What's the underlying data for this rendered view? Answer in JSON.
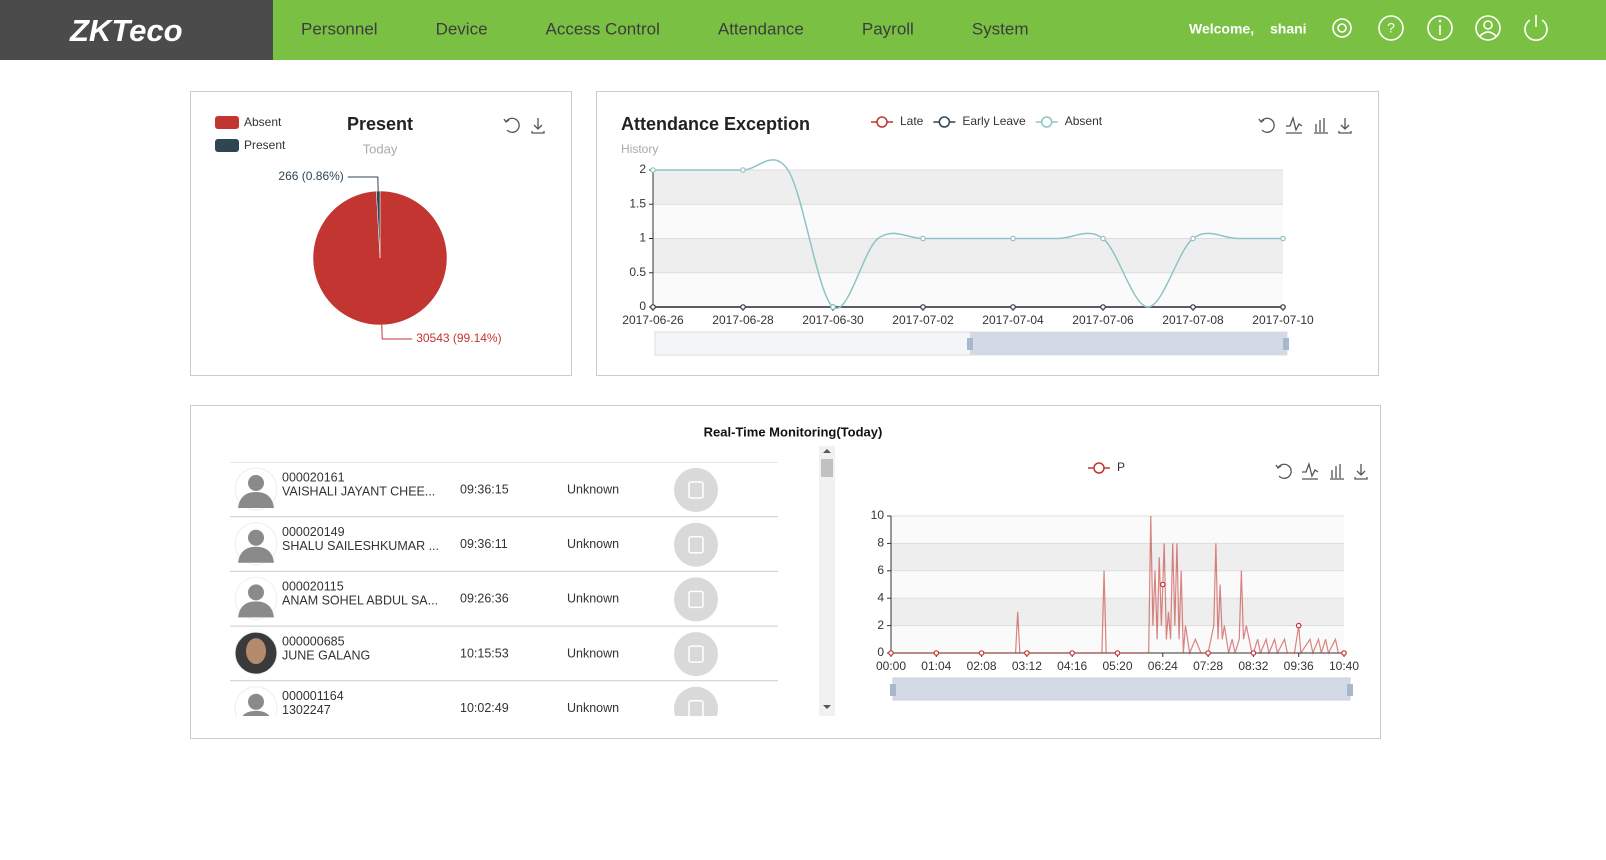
{
  "header": {
    "logo": "ZKTeco",
    "nav": [
      "Personnel",
      "Device",
      "Access Control",
      "Attendance",
      "Payroll",
      "System"
    ],
    "welcome": "Welcome,",
    "user": "shani"
  },
  "chart_data": [
    {
      "type": "pie",
      "title": "Present",
      "subtitle": "Today",
      "categories": [
        "Absent",
        "Present"
      ],
      "values": [
        30543,
        266
      ],
      "value_labels": [
        "30543 (99.14%)",
        "266 (0.86%)"
      ],
      "colors": [
        "#c23531",
        "#2f4554"
      ]
    },
    {
      "type": "line",
      "title": "Attendance Exception",
      "subtitle": "History",
      "categories": [
        "2017-06-26",
        null,
        "2017-06-28",
        null,
        "2017-06-30",
        null,
        "2017-07-02",
        null,
        "2017-07-04",
        null,
        "2017-07-06",
        null,
        "2017-07-08",
        null,
        "2017-07-10"
      ],
      "series": [
        {
          "name": "Late",
          "color": "#c23531",
          "values": [
            0,
            0,
            0,
            0,
            0,
            0,
            0,
            0,
            0,
            0,
            0,
            0,
            0,
            0,
            0
          ]
        },
        {
          "name": "Early Leave",
          "color": "#2f4554",
          "values": [
            0,
            0,
            0,
            0,
            0,
            0,
            0,
            0,
            0,
            0,
            0,
            0,
            0,
            0,
            0
          ]
        },
        {
          "name": "Absent",
          "color": "#8fc3c6",
          "values": [
            2,
            2,
            2,
            2,
            0,
            1,
            1,
            1,
            1,
            1,
            1,
            0,
            1,
            1,
            1
          ]
        }
      ],
      "ylim": [
        0,
        2
      ],
      "yticks": [
        0,
        0.5,
        1,
        1.5,
        2
      ],
      "grid": true,
      "smooth": true
    },
    {
      "type": "line",
      "x": [
        0,
        64,
        128,
        176,
        179,
        182,
        192,
        256,
        298,
        301,
        304,
        320,
        364,
        367,
        370,
        373,
        376,
        379,
        382,
        384,
        386,
        389,
        392,
        395,
        398,
        401,
        404,
        407,
        410,
        413,
        416,
        419,
        422,
        430,
        438,
        448,
        452,
        456,
        459,
        462,
        465,
        468,
        471,
        474,
        477,
        482,
        486,
        492,
        495,
        498,
        502,
        506,
        510,
        512,
        518,
        522,
        530,
        534,
        542,
        546,
        556,
        560,
        570,
        573,
        576,
        579,
        592,
        596,
        604,
        608,
        614,
        618,
        628,
        632,
        640
      ],
      "series": [
        {
          "name": "P",
          "color": "#c23531",
          "values": [
            0,
            0,
            0,
            0,
            3,
            0,
            0,
            0,
            0,
            6,
            0,
            0,
            0,
            10,
            2,
            6,
            1,
            7,
            2,
            5,
            8,
            1,
            3,
            1,
            8,
            2,
            8,
            1,
            6,
            0,
            2,
            1,
            0,
            1,
            0,
            0,
            1,
            2,
            8,
            1,
            5,
            1,
            2,
            1,
            0,
            1,
            0,
            1,
            6,
            1,
            2,
            1,
            0,
            0,
            1,
            0,
            1,
            0,
            1,
            0,
            1,
            0,
            0,
            1,
            2,
            0,
            1,
            0,
            1,
            0,
            1,
            0,
            1,
            0,
            0
          ]
        }
      ],
      "xlim": [
        0,
        640
      ],
      "xticks": [
        {
          "value": 0,
          "label": "00:00"
        },
        {
          "value": 64,
          "label": "01:04"
        },
        {
          "value": 128,
          "label": "02:08"
        },
        {
          "value": 192,
          "label": "03:12"
        },
        {
          "value": 256,
          "label": "04:16"
        },
        {
          "value": 320,
          "label": "05:20"
        },
        {
          "value": 384,
          "label": "06:24"
        },
        {
          "value": 448,
          "label": "07:28"
        },
        {
          "value": 512,
          "label": "08:32"
        },
        {
          "value": 576,
          "label": "09:36"
        },
        {
          "value": 640,
          "label": "10:40"
        }
      ],
      "ylim": [
        0,
        10
      ],
      "yticks": [
        0,
        2,
        4,
        6,
        8,
        10
      ],
      "grid": true,
      "smooth": false
    }
  ],
  "monitoring": {
    "title": "Real-Time Monitoring(Today)",
    "rows": [
      {
        "id": "000020161",
        "name": "VAISHALI JAYANT CHEE...",
        "time": "09:36:15",
        "status": "Unknown"
      },
      {
        "id": "000020149",
        "name": "SHALU SAILESHKUMAR ...",
        "time": "09:36:11",
        "status": "Unknown"
      },
      {
        "id": "000020115",
        "name": "ANAM SOHEL ABDUL SA...",
        "time": "09:26:36",
        "status": "Unknown"
      },
      {
        "id": "000000685",
        "name": "JUNE GALANG",
        "time": "10:15:53",
        "status": "Unknown"
      },
      {
        "id": "000001164",
        "name": "1302247",
        "time": "10:02:49",
        "status": "Unknown"
      }
    ]
  }
}
